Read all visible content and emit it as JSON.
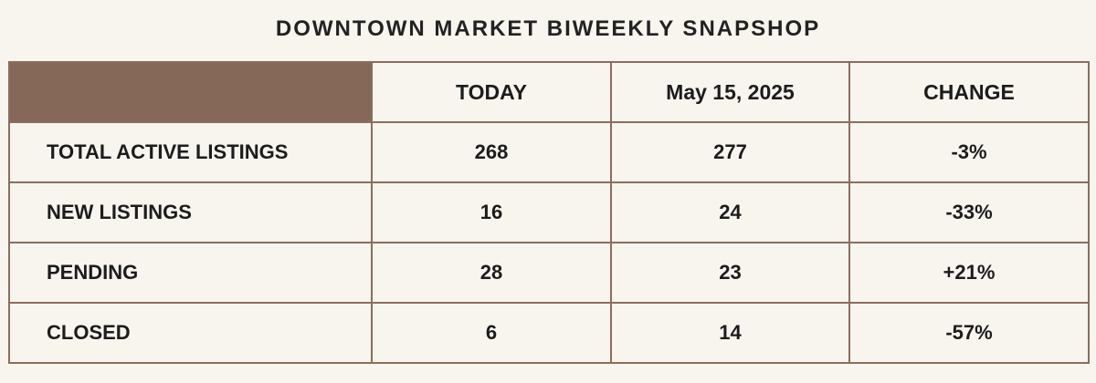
{
  "title": "DOWNTOWN MARKET BIWEEKLY SNAPSHOP",
  "colors": {
    "background": "#f8f5ee",
    "corner_fill": "#856857",
    "border": "#8a6e5e"
  },
  "table": {
    "headers": [
      "",
      "TODAY",
      "May 15, 2025",
      "CHANGE"
    ],
    "rows": [
      {
        "label": "TOTAL ACTIVE LISTINGS",
        "today": "268",
        "prior": "277",
        "change": "-3%"
      },
      {
        "label": "NEW LISTINGS",
        "today": "16",
        "prior": "24",
        "change": "-33%"
      },
      {
        "label": "PENDING",
        "today": "28",
        "prior": "23",
        "change": "+21%"
      },
      {
        "label": "CLOSED",
        "today": "6",
        "prior": "14",
        "change": "-57%"
      }
    ]
  }
}
